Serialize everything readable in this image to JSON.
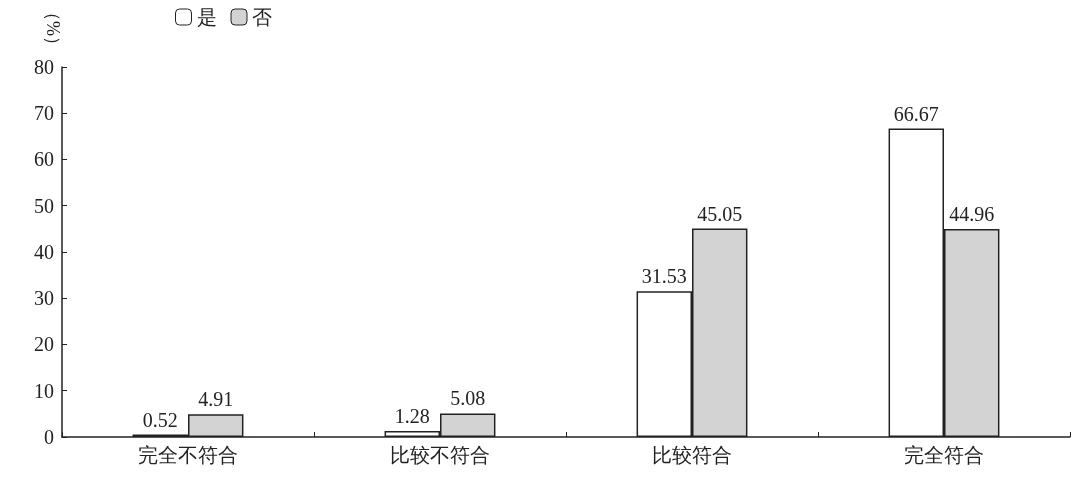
{
  "chart_data": {
    "type": "bar",
    "ylabel": "（%）",
    "categories": [
      "完全不符合",
      "比较不符合",
      "比较符合",
      "完全符合"
    ],
    "series": [
      {
        "name": "是",
        "color": "#ffffff",
        "values": [
          0.52,
          1.28,
          31.53,
          66.67
        ]
      },
      {
        "name": "否",
        "color": "#d3d3d3",
        "values": [
          4.91,
          5.08,
          45.05,
          44.96
        ]
      }
    ],
    "ylim": [
      0,
      80
    ],
    "yticks": [
      0,
      10,
      20,
      30,
      40,
      50,
      60,
      70,
      80
    ],
    "grid": false,
    "legend": "top left",
    "data_labels": true
  }
}
